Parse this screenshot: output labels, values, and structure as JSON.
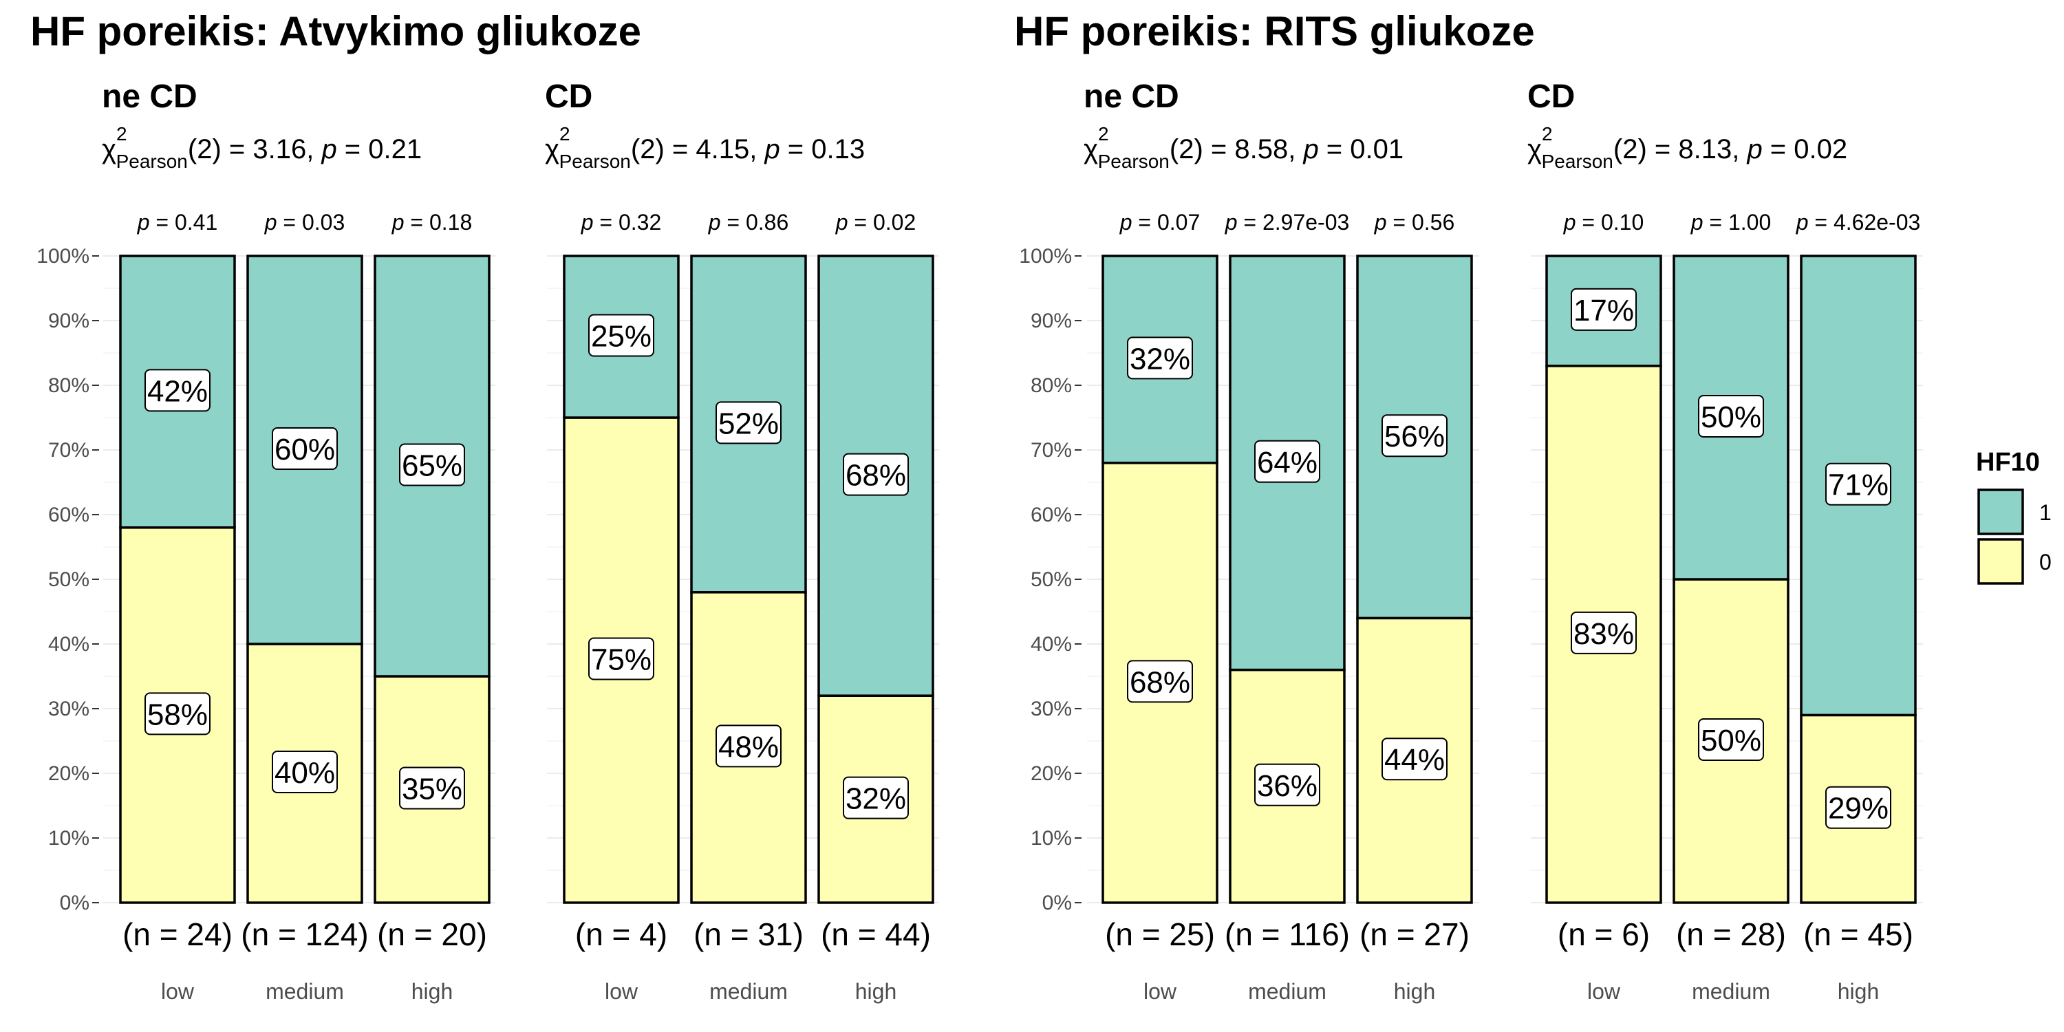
{
  "titles": {
    "left": "HF poreikis: Atvykimo gliukoze",
    "right": "HF poreikis: RITS gliukoze"
  },
  "legend": {
    "title": "HF10",
    "entries": [
      {
        "label": "1",
        "color": "#8dd3c7"
      },
      {
        "label": "0",
        "color": "#ffffb3"
      }
    ]
  },
  "chart_data": [
    {
      "type": "bar",
      "stacked": "percent",
      "title": "ne CD",
      "group_title": "HF poreikis: Atvykimo gliukoze",
      "stat": {
        "prefix": "χ",
        "sup": "2",
        "sub": "Pearson",
        "rest": "(2) = 3.16, ",
        "p_symbol": "p",
        "p_rest": " = 0.21"
      },
      "categories": [
        "low",
        "medium",
        "high"
      ],
      "counts": [
        "(n = 24)",
        "(n = 124)",
        "(n = 20)"
      ],
      "pvalues": [
        "p = 0.41",
        "p = 0.03",
        "p = 0.18"
      ],
      "series": [
        {
          "name": "0",
          "color": "#ffffb3",
          "values": [
            58,
            40,
            35
          ]
        },
        {
          "name": "1",
          "color": "#8dd3c7",
          "values": [
            42,
            60,
            65
          ]
        }
      ],
      "ylim": [
        0,
        100
      ],
      "yticks": [
        "0%",
        "10%",
        "20%",
        "30%",
        "40%",
        "50%",
        "60%",
        "70%",
        "80%",
        "90%",
        "100%"
      ]
    },
    {
      "type": "bar",
      "stacked": "percent",
      "title": "CD",
      "group_title": "HF poreikis: Atvykimo gliukoze",
      "stat": {
        "prefix": "χ",
        "sup": "2",
        "sub": "Pearson",
        "rest": "(2) = 4.15, ",
        "p_symbol": "p",
        "p_rest": " = 0.13"
      },
      "categories": [
        "low",
        "medium",
        "high"
      ],
      "counts": [
        "(n = 4)",
        "(n = 31)",
        "(n = 44)"
      ],
      "pvalues": [
        "p = 0.32",
        "p = 0.86",
        "p = 0.02"
      ],
      "series": [
        {
          "name": "0",
          "color": "#ffffb3",
          "values": [
            75,
            48,
            32
          ]
        },
        {
          "name": "1",
          "color": "#8dd3c7",
          "values": [
            25,
            52,
            68
          ]
        }
      ],
      "ylim": [
        0,
        100
      ]
    },
    {
      "type": "bar",
      "stacked": "percent",
      "title": "ne CD",
      "group_title": "HF poreikis: RITS gliukoze",
      "stat": {
        "prefix": "χ",
        "sup": "2",
        "sub": "Pearson",
        "rest": "(2) = 8.58, ",
        "p_symbol": "p",
        "p_rest": " = 0.01"
      },
      "categories": [
        "low",
        "medium",
        "high"
      ],
      "counts": [
        "(n = 25)",
        "(n = 116)",
        "(n = 27)"
      ],
      "pvalues": [
        "p = 0.07",
        "p = 2.97e-03",
        "p = 0.56"
      ],
      "series": [
        {
          "name": "0",
          "color": "#ffffb3",
          "values": [
            68,
            36,
            44
          ]
        },
        {
          "name": "1",
          "color": "#8dd3c7",
          "values": [
            32,
            64,
            56
          ]
        }
      ],
      "ylim": [
        0,
        100
      ],
      "yticks": [
        "0%",
        "10%",
        "20%",
        "30%",
        "40%",
        "50%",
        "60%",
        "70%",
        "80%",
        "90%",
        "100%"
      ]
    },
    {
      "type": "bar",
      "stacked": "percent",
      "title": "CD",
      "group_title": "HF poreikis: RITS gliukoze",
      "stat": {
        "prefix": "χ",
        "sup": "2",
        "sub": "Pearson",
        "rest": "(2) = 8.13, ",
        "p_symbol": "p",
        "p_rest": " = 0.02"
      },
      "categories": [
        "low",
        "medium",
        "high"
      ],
      "counts": [
        "(n = 6)",
        "(n = 28)",
        "(n = 45)"
      ],
      "pvalues": [
        "p = 0.10",
        "p = 1.00",
        "p = 4.62e-03"
      ],
      "series": [
        {
          "name": "0",
          "color": "#ffffb3",
          "values": [
            83,
            50,
            29
          ]
        },
        {
          "name": "1",
          "color": "#8dd3c7",
          "values": [
            17,
            50,
            71
          ]
        }
      ],
      "ylim": [
        0,
        100
      ]
    }
  ]
}
